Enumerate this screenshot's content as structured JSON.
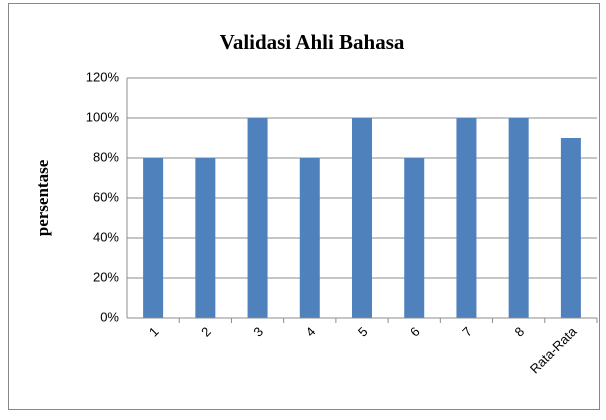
{
  "chart_data": {
    "type": "bar",
    "title": "Validasi Ahli Bahasa",
    "ylabel": "persentase",
    "categories": [
      "1",
      "2",
      "3",
      "4",
      "5",
      "6",
      "7",
      "8",
      "Rata-Rata"
    ],
    "values": [
      80,
      80,
      100,
      80,
      100,
      80,
      100,
      100,
      90
    ],
    "color": "#4f81bd",
    "ylim": [
      0,
      120
    ],
    "yticks": [
      {
        "value": 0,
        "label": "0%"
      },
      {
        "value": 20,
        "label": "20%"
      },
      {
        "value": 40,
        "label": "40%"
      },
      {
        "value": 60,
        "label": "60%"
      },
      {
        "value": 80,
        "label": "80%"
      },
      {
        "value": 100,
        "label": "100%"
      },
      {
        "value": 120,
        "label": "120%"
      }
    ],
    "grid": true
  }
}
